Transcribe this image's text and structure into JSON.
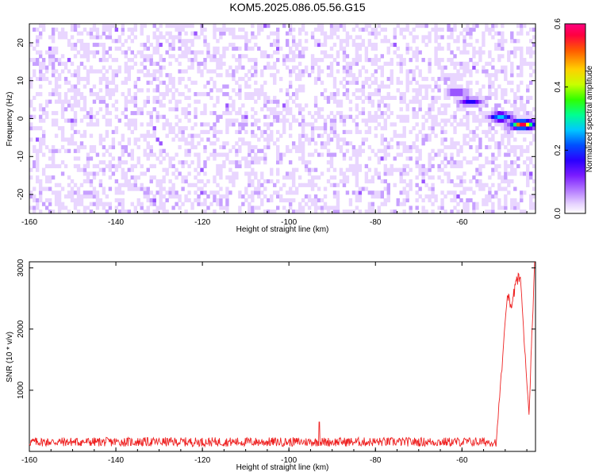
{
  "title": "KOM5.2025.086.05.56.G15",
  "colors": {
    "snr_line": "#ee2222",
    "spectrogram_palette": [
      "#ffffff",
      "#e9d6ff",
      "#c7a0ff",
      "#9a55ff",
      "#6a00ff",
      "#2200ff",
      "#0050ff",
      "#00c8ff",
      "#00ff80",
      "#80ff00",
      "#ffff00",
      "#ff8000",
      "#ff0040",
      "#ff0080"
    ]
  },
  "chart_data": [
    {
      "type": "heatmap",
      "title": "KOM5.2025.086.05.56.G15",
      "xlabel": "Height of straight line (km)",
      "ylabel": "Frequency (Hz)",
      "xlim": [
        -160,
        -43
      ],
      "ylim": [
        -25,
        25
      ],
      "xticks": [
        "-160",
        "-140",
        "-120",
        "-100",
        "-80",
        "-60"
      ],
      "yticks": [
        "-20",
        "-10",
        "0",
        "10",
        "20"
      ],
      "colorbar": {
        "label": "Normalized spectral amplitude",
        "range": [
          0,
          0.6
        ],
        "ticks": [
          "0.0",
          "0.2",
          "0.4",
          "0.6"
        ]
      },
      "description_values": {
        "background_level": 0.06,
        "peak_near_x": -46,
        "peak_near_freq": -1.5,
        "peak_value": 0.58,
        "secondary_features": [
          {
            "x": -61,
            "freq": 7,
            "value": 0.2
          },
          {
            "x": -58,
            "freq": 4.5,
            "value": 0.25
          },
          {
            "x": -51,
            "freq": 0.5,
            "value": 0.35
          }
        ]
      }
    },
    {
      "type": "line",
      "xlabel": "Height of straight line (km)",
      "ylabel": "SNR (10 * v/v)",
      "xlim": [
        -160,
        -43
      ],
      "ylim": [
        0,
        3100
      ],
      "xticks": [
        "-160",
        "-140",
        "-120",
        "-100",
        "-80",
        "-60"
      ],
      "yticks": [
        "1000",
        "2000",
        "3000"
      ],
      "series_shape": {
        "baseline_range": [
          80,
          230
        ],
        "spike_near_x": -93,
        "spike_value": 480,
        "rise_start_x": -52,
        "peak_points": [
          {
            "x": -49.5,
            "y": 2550
          },
          {
            "x": -48.5,
            "y": 2350
          },
          {
            "x": -47.5,
            "y": 2800
          },
          {
            "x": -46.5,
            "y": 2850
          },
          {
            "x": -44.5,
            "y": 600
          },
          {
            "x": -43.2,
            "y": 3100
          }
        ]
      }
    }
  ]
}
